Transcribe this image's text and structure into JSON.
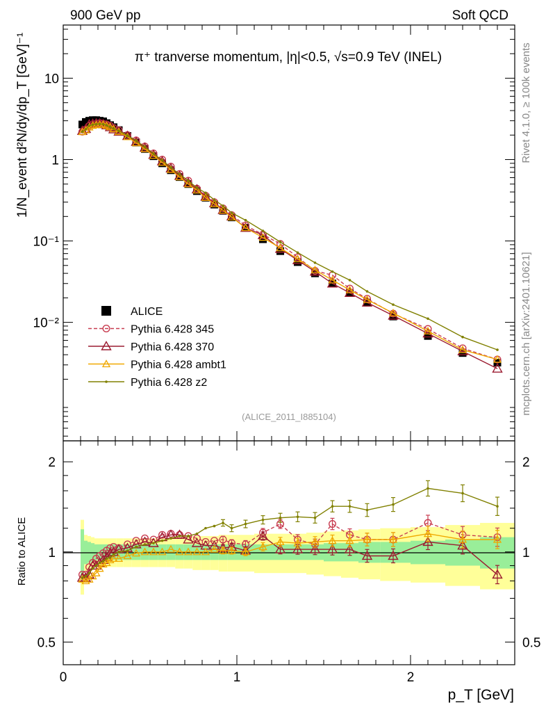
{
  "header": {
    "left": "900 GeV pp",
    "right": "Soft QCD"
  },
  "side_labels": {
    "rivet": "Rivet 4.1.0, ≥ 100k events",
    "mcplots": "mcplots.cern.ch [arXiv:2401.10621]"
  },
  "chart_data": [
    {
      "type": "line",
      "panel": "main",
      "scale": "log",
      "title": "π⁺ tranverse momentum, |η|<0.5, √s=0.9 TeV (INEL)",
      "ylabel": "1/N_event d²N/dy/dp_T [GeV]⁻¹",
      "ylim": [
        0.00035,
        45
      ],
      "xlim": [
        0,
        2.6
      ],
      "ytick_labels": [
        "10⁻²",
        "10⁻¹",
        "1",
        "10"
      ],
      "watermark": "(ALICE_2011_I885104)",
      "legend_position": "center-left",
      "x": [
        0.11,
        0.13,
        0.15,
        0.17,
        0.19,
        0.21,
        0.23,
        0.25,
        0.27,
        0.29,
        0.32,
        0.37,
        0.42,
        0.47,
        0.52,
        0.57,
        0.62,
        0.67,
        0.72,
        0.77,
        0.82,
        0.87,
        0.92,
        0.97,
        1.05,
        1.15,
        1.25,
        1.35,
        1.45,
        1.55,
        1.65,
        1.75,
        1.9,
        2.1,
        2.3,
        2.5
      ],
      "series": [
        {
          "name": "ALICE",
          "color": "#000000",
          "marker": "square",
          "values": [
            2.7,
            2.9,
            3.0,
            3.05,
            3.05,
            3.0,
            2.95,
            2.8,
            2.65,
            2.5,
            2.3,
            1.95,
            1.62,
            1.35,
            1.1,
            0.9,
            0.74,
            0.61,
            0.5,
            0.41,
            0.34,
            0.28,
            0.235,
            0.195,
            0.145,
            0.105,
            0.075,
            0.055,
            0.04,
            0.03,
            0.023,
            0.0175,
            0.0118,
            0.0068,
            0.0042,
            0.0032
          ]
        },
        {
          "name": "Pythia 6.428 345",
          "color": "#c83c50",
          "marker": "open-circle",
          "dashed": true,
          "values": [
            2.2,
            2.35,
            2.6,
            2.7,
            2.75,
            2.8,
            2.75,
            2.7,
            2.6,
            2.45,
            2.3,
            2.0,
            1.72,
            1.45,
            1.19,
            1.0,
            0.82,
            0.665,
            0.55,
            0.44,
            0.36,
            0.3,
            0.252,
            0.208,
            0.155,
            0.12,
            0.092,
            0.063,
            0.043,
            0.038,
            0.026,
            0.0195,
            0.0128,
            0.0083,
            0.0048,
            0.0035
          ]
        },
        {
          "name": "Pythia 6.428 370",
          "color": "#9b1b30",
          "marker": "open-triangle",
          "values": [
            2.25,
            2.38,
            2.7,
            2.75,
            2.78,
            2.77,
            2.72,
            2.63,
            2.5,
            2.35,
            2.2,
            1.95,
            1.65,
            1.4,
            1.14,
            0.95,
            0.78,
            0.63,
            0.52,
            0.43,
            0.35,
            0.29,
            0.24,
            0.2,
            0.145,
            0.118,
            0.08,
            0.058,
            0.042,
            0.03,
            0.023,
            0.0175,
            0.0121,
            0.0073,
            0.0044,
            0.0027
          ]
        },
        {
          "name": "Pythia 6.428 ambt1",
          "color": "#f0a800",
          "marker": "open-triangle-small",
          "values": [
            2.19,
            2.3,
            2.5,
            2.62,
            2.67,
            2.7,
            2.7,
            2.62,
            2.52,
            2.38,
            2.2,
            1.9,
            1.6,
            1.35,
            1.12,
            0.92,
            0.75,
            0.61,
            0.5,
            0.42,
            0.34,
            0.285,
            0.238,
            0.196,
            0.145,
            0.11,
            0.082,
            0.06,
            0.044,
            0.033,
            0.025,
            0.019,
            0.013,
            0.0078,
            0.0046,
            0.0035
          ]
        },
        {
          "name": "Pythia 6.428 z2",
          "color": "#808000",
          "marker": "dot",
          "values": [
            2.2,
            2.35,
            2.6,
            2.68,
            2.72,
            2.74,
            2.72,
            2.64,
            2.52,
            2.4,
            2.25,
            1.97,
            1.7,
            1.43,
            1.18,
            0.98,
            0.8,
            0.66,
            0.55,
            0.45,
            0.39,
            0.32,
            0.27,
            0.222,
            0.18,
            0.133,
            0.097,
            0.072,
            0.054,
            0.042,
            0.033,
            0.024,
            0.0165,
            0.0111,
            0.0066,
            0.0046
          ]
        }
      ]
    },
    {
      "type": "line",
      "panel": "ratio",
      "scale": "log",
      "ylabel": "Ratio to ALICE",
      "xlabel": "p_T [GeV]",
      "ylim": [
        0.42,
        2.35
      ],
      "xlim": [
        0,
        2.6
      ],
      "ytick_labels": [
        "0.5",
        "1",
        "2"
      ],
      "xtick_labels": [
        "0",
        "1",
        "2"
      ],
      "x": [
        0.11,
        0.13,
        0.15,
        0.17,
        0.19,
        0.21,
        0.23,
        0.25,
        0.27,
        0.29,
        0.32,
        0.37,
        0.42,
        0.47,
        0.52,
        0.57,
        0.62,
        0.67,
        0.72,
        0.77,
        0.82,
        0.87,
        0.92,
        0.97,
        1.05,
        1.15,
        1.25,
        1.35,
        1.45,
        1.55,
        1.65,
        1.75,
        1.9,
        2.1,
        2.3,
        2.5
      ],
      "band_stat": [
        0.19,
        0.09,
        0.08,
        0.07,
        0.06,
        0.06,
        0.06,
        0.06,
        0.06,
        0.06,
        0.06,
        0.06,
        0.06,
        0.06,
        0.06,
        0.06,
        0.06,
        0.06,
        0.06,
        0.06,
        0.06,
        0.06,
        0.06,
        0.06,
        0.06,
        0.06,
        0.06,
        0.06,
        0.06,
        0.07,
        0.07,
        0.08,
        0.08,
        0.09,
        0.1,
        0.12
      ],
      "band_total": [
        0.28,
        0.14,
        0.13,
        0.12,
        0.11,
        0.11,
        0.11,
        0.11,
        0.11,
        0.11,
        0.11,
        0.11,
        0.11,
        0.11,
        0.11,
        0.11,
        0.11,
        0.12,
        0.12,
        0.13,
        0.13,
        0.13,
        0.14,
        0.14,
        0.14,
        0.15,
        0.15,
        0.15,
        0.16,
        0.17,
        0.18,
        0.19,
        0.2,
        0.21,
        0.23,
        0.25
      ],
      "series": [
        {
          "name": "Pythia 6.428 345",
          "color": "#c83c50",
          "marker": "open-circle",
          "dashed": true,
          "values": [
            0.84,
            0.84,
            0.89,
            0.92,
            0.95,
            0.97,
            0.99,
            1.01,
            1.03,
            1.04,
            1.03,
            1.06,
            1.09,
            1.11,
            1.1,
            1.14,
            1.15,
            1.14,
            1.13,
            1.11,
            1.08,
            1.09,
            1.1,
            1.07,
            1.06,
            1.16,
            1.24,
            1.1,
            1.06,
            1.24,
            1.14,
            1.1,
            1.1,
            1.25,
            1.14,
            1.12
          ]
        },
        {
          "name": "Pythia 6.428 370",
          "color": "#9b1b30",
          "marker": "open-triangle",
          "values": [
            0.82,
            0.82,
            0.84,
            0.9,
            0.9,
            0.92,
            0.94,
            0.96,
            0.99,
            1.0,
            1.02,
            1.03,
            1.06,
            1.08,
            1.07,
            1.12,
            1.14,
            1.14,
            1.1,
            1.07,
            1.05,
            1.05,
            1.03,
            1.04,
            1.01,
            1.13,
            1.02,
            1.02,
            1.02,
            1.02,
            1.02,
            0.97,
            0.97,
            1.08,
            1.05,
            0.84
          ]
        },
        {
          "name": "Pythia 6.428 ambt1",
          "color": "#f0a800",
          "marker": "open-triangle-small",
          "values": [
            0.81,
            0.8,
            0.81,
            0.83,
            0.85,
            0.88,
            0.91,
            0.92,
            0.94,
            0.95,
            0.95,
            0.97,
            0.99,
            1.0,
            1.0,
            1.0,
            1.02,
            1.0,
            1.0,
            1.0,
            1.0,
            1.02,
            1.01,
            1.01,
            1.0,
            1.04,
            1.08,
            1.07,
            1.08,
            1.09,
            1.09,
            1.1,
            1.1,
            1.15,
            1.1,
            1.1
          ]
        },
        {
          "name": "Pythia 6.428 z2",
          "color": "#808000",
          "marker": "dot",
          "values": [
            0.82,
            0.83,
            0.85,
            0.88,
            0.9,
            0.92,
            0.93,
            0.95,
            0.96,
            0.98,
            1.0,
            1.01,
            1.04,
            1.06,
            1.07,
            1.09,
            1.11,
            1.13,
            1.13,
            1.15,
            1.2,
            1.22,
            1.25,
            1.2,
            1.24,
            1.28,
            1.3,
            1.31,
            1.3,
            1.42,
            1.42,
            1.38,
            1.44,
            1.63,
            1.57,
            1.42
          ]
        }
      ]
    }
  ]
}
